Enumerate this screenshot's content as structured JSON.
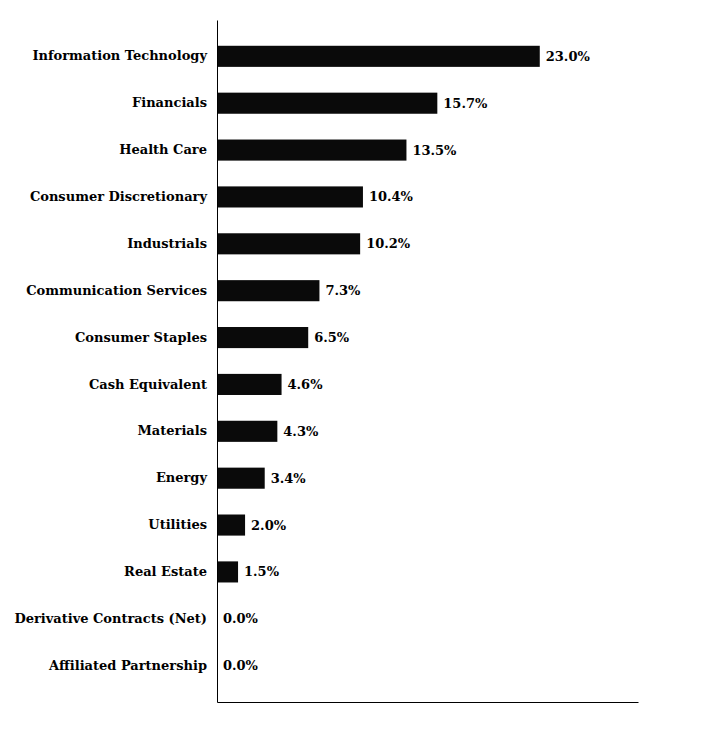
{
  "chart_data": {
    "type": "bar",
    "orientation": "horizontal",
    "categories": [
      "Information Technology",
      "Financials",
      "Health Care",
      "Consumer Discretionary",
      "Industrials",
      "Communication Services",
      "Consumer Staples",
      "Cash Equivalent",
      "Materials",
      "Energy",
      "Utilities",
      "Real Estate",
      "Derivative Contracts (Net)",
      "Affiliated Partnership"
    ],
    "values": [
      23.0,
      15.7,
      13.5,
      10.4,
      10.2,
      7.3,
      6.5,
      4.6,
      4.3,
      3.4,
      2.0,
      1.5,
      0.0,
      0.0
    ],
    "value_labels": [
      "23.0%",
      "15.7%",
      "13.5%",
      "10.4%",
      "10.2%",
      "7.3%",
      "6.5%",
      "4.6%",
      "4.3%",
      "3.4%",
      "2.0%",
      "1.5%",
      "0.0%",
      "0.0%"
    ],
    "color": "#0a0a0a",
    "xlim": [
      0,
      30
    ],
    "data_labels": true,
    "tick_labels": "y"
  }
}
